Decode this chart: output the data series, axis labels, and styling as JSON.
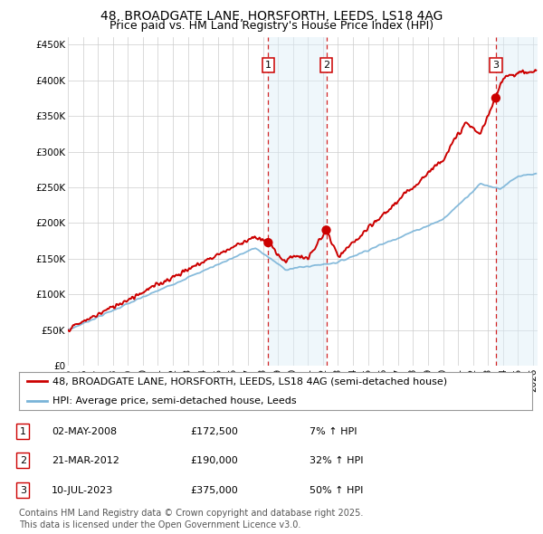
{
  "title1": "48, BROADGATE LANE, HORSFORTH, LEEDS, LS18 4AG",
  "title2": "Price paid vs. HM Land Registry's House Price Index (HPI)",
  "ylim": [
    0,
    460000
  ],
  "yticks": [
    0,
    50000,
    100000,
    150000,
    200000,
    250000,
    300000,
    350000,
    400000,
    450000
  ],
  "ytick_labels": [
    "£0",
    "£50K",
    "£100K",
    "£150K",
    "£200K",
    "£250K",
    "£300K",
    "£350K",
    "£400K",
    "£450K"
  ],
  "hpi_color": "#7ab4d8",
  "price_color": "#cc0000",
  "background_color": "#ffffff",
  "grid_color": "#cccccc",
  "shade_color": "#dceef8",
  "legend_label_red": "48, BROADGATE LANE, HORSFORTH, LEEDS, LS18 4AG (semi-detached house)",
  "legend_label_blue": "HPI: Average price, semi-detached house, Leeds",
  "sales": [
    {
      "num": 1,
      "date_x": 2008.35,
      "price": 172500,
      "label": "02-MAY-2008",
      "price_str": "£172,500",
      "hpi_str": "7% ↑ HPI"
    },
    {
      "num": 2,
      "date_x": 2012.22,
      "price": 190000,
      "label": "21-MAR-2012",
      "price_str": "£190,000",
      "hpi_str": "32% ↑ HPI"
    },
    {
      "num": 3,
      "date_x": 2023.52,
      "price": 375000,
      "label": "10-JUL-2023",
      "price_str": "£375,000",
      "hpi_str": "50% ↑ HPI"
    }
  ],
  "xlim_start": 1995.0,
  "xlim_end": 2026.3,
  "footer": "Contains HM Land Registry data © Crown copyright and database right 2025.\nThis data is licensed under the Open Government Licence v3.0.",
  "title_fontsize": 10,
  "subtitle_fontsize": 9,
  "tick_fontsize": 7.5,
  "legend_fontsize": 8,
  "table_fontsize": 8,
  "footer_fontsize": 7
}
